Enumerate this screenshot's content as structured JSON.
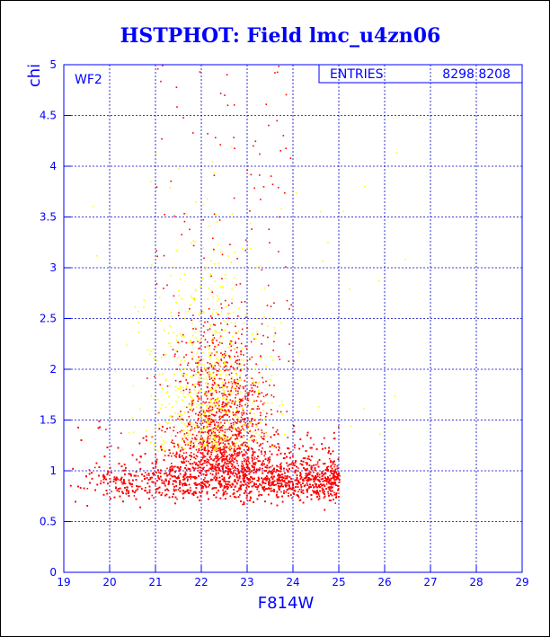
{
  "chart_data": {
    "type": "scatter",
    "title": "HSTPHOT: Field lmc_u4zn06",
    "xlabel": "F814W",
    "ylabel": "chi",
    "xlim": [
      19,
      29
    ],
    "ylim": [
      0,
      5
    ],
    "xticks": [
      "19",
      "20",
      "21",
      "22",
      "23",
      "24",
      "25",
      "26",
      "27",
      "28",
      "29"
    ],
    "yticks": [
      "0",
      "0.5",
      "1",
      "1.5",
      "2",
      "2.5",
      "3",
      "3.5",
      "4",
      "4.5",
      "5"
    ],
    "grid": true,
    "panel_label": "WF2",
    "stats_box": {
      "label": "ENTRIES",
      "value": "8298 8208"
    },
    "colors": {
      "frame": "#000000",
      "axes": "#0000ff",
      "grid": "#0000cc",
      "series_red": "#ff0000",
      "series_yellow": "#ffff00"
    },
    "series": [
      {
        "color": "#ff0000",
        "description_points": [
          [
            21.5,
            0.9
          ],
          [
            22.0,
            0.95
          ],
          [
            22.5,
            0.9
          ],
          [
            23.0,
            0.92
          ],
          [
            23.5,
            0.9
          ],
          [
            24.0,
            0.88
          ],
          [
            24.5,
            0.85
          ],
          [
            20.5,
            0.9
          ],
          [
            21.0,
            1.0
          ],
          [
            22.2,
            1.2
          ],
          [
            22.8,
            1.3
          ],
          [
            23.3,
            1.1
          ],
          [
            21.8,
            1.5
          ],
          [
            22.5,
            1.7
          ]
        ]
      },
      {
        "color": "#ffff00",
        "description_points": [
          [
            21.5,
            2.2
          ],
          [
            22.0,
            2.6
          ],
          [
            22.4,
            3.0
          ],
          [
            22.8,
            3.4
          ],
          [
            21.2,
            2.8
          ],
          [
            20.5,
            3.2
          ],
          [
            22.6,
            4.0
          ],
          [
            26.5,
            1.6
          ]
        ]
      }
    ]
  }
}
